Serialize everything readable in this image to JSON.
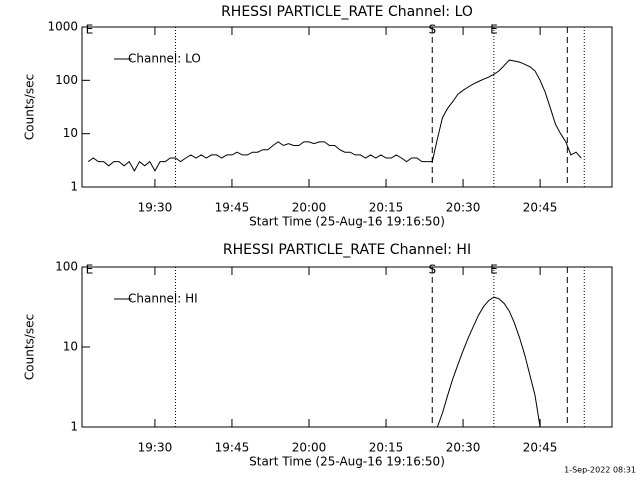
{
  "chart_data": [
    {
      "type": "line",
      "title": "RHESSI PARTICLE_RATE Channel: LO",
      "xlabel": "Start Time (25-Aug-16 19:16:50)",
      "ylabel": "Counts/sec",
      "log_y": true,
      "legend": "upper left",
      "xlim": [
        1155.8,
        1259
      ],
      "ylim": [
        1,
        1000
      ],
      "xticks": [
        {
          "value": 1170,
          "label": "19:30"
        },
        {
          "value": 1185,
          "label": "19:45"
        },
        {
          "value": 1200,
          "label": "20:00"
        },
        {
          "value": 1215,
          "label": "20:15"
        },
        {
          "value": 1230,
          "label": "20:30"
        },
        {
          "value": 1245,
          "label": "20:45"
        }
      ],
      "yticks": [
        1,
        10,
        100,
        1000
      ],
      "vlines": [
        {
          "x": 1174,
          "style": "dotted"
        },
        {
          "x": 1224,
          "style": "dashed"
        },
        {
          "x": 1236,
          "style": "dotted"
        },
        {
          "x": 1250.3,
          "style": "dashed"
        },
        {
          "x": 1253.6,
          "style": "dotted"
        }
      ],
      "annotations": [
        {
          "text": "E",
          "x": 1156.5
        },
        {
          "text": "S",
          "x": 1224
        },
        {
          "text": "E",
          "x": 1236
        }
      ],
      "x": [
        1157,
        1158,
        1159,
        1160,
        1161,
        1162,
        1163,
        1164,
        1165,
        1166,
        1167,
        1168,
        1169,
        1170,
        1171,
        1172,
        1173,
        1174,
        1175,
        1176,
        1177,
        1178,
        1179,
        1180,
        1181,
        1182,
        1183,
        1184,
        1185,
        1186,
        1187,
        1188,
        1189,
        1190,
        1191,
        1192,
        1193,
        1194,
        1195,
        1196,
        1197,
        1198,
        1199,
        1200,
        1201,
        1202,
        1203,
        1204,
        1205,
        1206,
        1207,
        1208,
        1209,
        1210,
        1211,
        1212,
        1213,
        1214,
        1215,
        1216,
        1217,
        1218,
        1219,
        1220,
        1221,
        1222,
        1223,
        1224,
        1225,
        1226,
        1227,
        1228,
        1229,
        1230,
        1231,
        1232,
        1233,
        1234,
        1235,
        1236,
        1237,
        1238,
        1239,
        1240,
        1241,
        1242,
        1243,
        1244,
        1245,
        1246,
        1247,
        1248,
        1249,
        1250,
        1251,
        1252,
        1253
      ],
      "series": [
        {
          "name": "Channel: LO",
          "color": "#000000",
          "values": [
            3,
            3.5,
            3,
            3,
            2.5,
            3,
            3,
            2.5,
            3,
            2,
            3,
            2.5,
            3,
            2,
            3,
            3,
            3.5,
            3.5,
            3,
            3.5,
            4,
            3.5,
            4,
            3.5,
            4,
            4,
            3.5,
            4,
            4,
            4.5,
            4,
            4,
            4.5,
            4.5,
            5,
            5,
            6,
            7,
            6,
            6.5,
            6,
            6,
            7,
            7,
            6.5,
            7,
            7,
            6,
            6,
            5,
            4.5,
            4.5,
            4,
            4,
            3.5,
            4,
            3.5,
            4,
            3.5,
            3.5,
            4,
            3.5,
            3,
            3.5,
            3.5,
            3,
            3,
            3,
            8,
            20,
            30,
            40,
            55,
            65,
            75,
            85,
            95,
            105,
            115,
            130,
            150,
            190,
            240,
            230,
            220,
            200,
            180,
            150,
            100,
            60,
            30,
            15,
            10,
            7,
            4,
            4.5,
            3.5
          ]
        }
      ]
    },
    {
      "type": "line",
      "title": "RHESSI PARTICLE_RATE Channel: HI",
      "xlabel": "Start Time (25-Aug-16 19:16:50)",
      "ylabel": "Counts/sec",
      "log_y": true,
      "legend": "upper left",
      "xlim": [
        1155.8,
        1259
      ],
      "ylim": [
        1,
        100
      ],
      "xticks": [
        {
          "value": 1170,
          "label": "19:30"
        },
        {
          "value": 1185,
          "label": "19:45"
        },
        {
          "value": 1200,
          "label": "20:00"
        },
        {
          "value": 1215,
          "label": "20:15"
        },
        {
          "value": 1230,
          "label": "20:30"
        },
        {
          "value": 1245,
          "label": "20:45"
        }
      ],
      "yticks": [
        1,
        10,
        100
      ],
      "vlines": [
        {
          "x": 1174,
          "style": "dotted"
        },
        {
          "x": 1224,
          "style": "dashed"
        },
        {
          "x": 1236,
          "style": "dotted"
        },
        {
          "x": 1250.3,
          "style": "dashed"
        },
        {
          "x": 1253.6,
          "style": "dotted"
        }
      ],
      "annotations": [
        {
          "text": "E",
          "x": 1156.5
        },
        {
          "text": "S",
          "x": 1224
        },
        {
          "text": "E",
          "x": 1236
        }
      ],
      "x": [
        1225,
        1226,
        1227,
        1228,
        1229,
        1230,
        1231,
        1232,
        1233,
        1234,
        1235,
        1236,
        1237,
        1238,
        1239,
        1240,
        1241,
        1242,
        1243,
        1244,
        1245
      ],
      "series": [
        {
          "name": "Channel: HI",
          "color": "#000000",
          "values": [
            1,
            1.5,
            2.5,
            4,
            6,
            9,
            13,
            18,
            25,
            32,
            38,
            42,
            40,
            35,
            28,
            20,
            13,
            8,
            4.5,
            2.5,
            1
          ]
        }
      ]
    }
  ],
  "footer": "1-Sep-2022 08:31"
}
